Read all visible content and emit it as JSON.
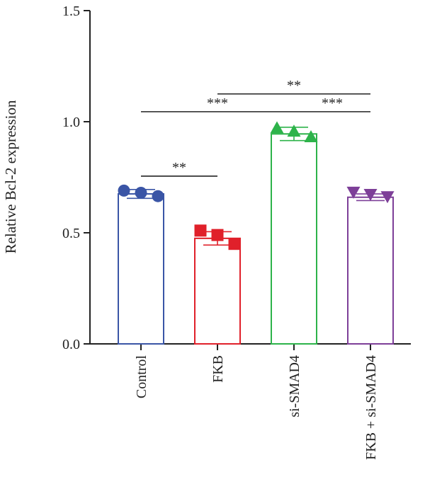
{
  "chart_data": {
    "type": "bar",
    "ylabel": "Relative Bcl-2 expression",
    "ylim": [
      0,
      1.5
    ],
    "yticks": [
      "0.0",
      "0.5",
      "1.0",
      "1.5"
    ],
    "categories": [
      "Control",
      "FKB",
      "si-SMAD4",
      "FKB + si-SMAD4"
    ],
    "values": [
      0.675,
      0.475,
      0.945,
      0.66
    ],
    "errors": [
      0.02,
      0.03,
      0.03,
      0.015
    ],
    "points": [
      [
        0.69,
        0.68,
        0.665
      ],
      [
        0.51,
        0.49,
        0.45
      ],
      [
        0.97,
        0.955,
        0.93
      ],
      [
        0.685,
        0.675,
        0.665
      ]
    ],
    "markers": [
      "circle",
      "square",
      "triangle-up",
      "triangle-down"
    ],
    "colors": [
      "#3a55a6",
      "#e0202a",
      "#2db34a",
      "#7d3f98"
    ],
    "significance": [
      {
        "from": 0,
        "to": 1,
        "y": 0.755,
        "label": "**"
      },
      {
        "from": 0,
        "to": 2,
        "y": 1.045,
        "label": "***"
      },
      {
        "from": 2,
        "to": 3,
        "y": 1.045,
        "label": "***"
      },
      {
        "from": 1,
        "to": 3,
        "y": 1.125,
        "label": "**"
      }
    ]
  }
}
